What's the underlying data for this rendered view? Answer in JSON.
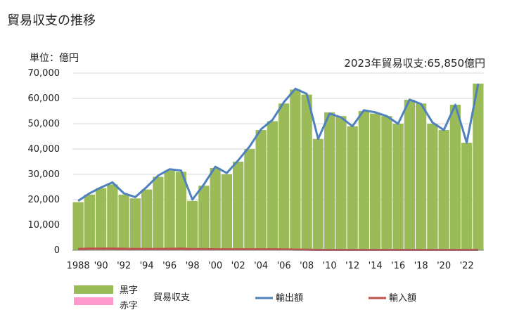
{
  "title": "貿易収支の推移",
  "unit_label": "単位：億円",
  "annotation": "2023年貿易収支:65,850億円",
  "colors": {
    "surplus": "#9bbb59",
    "deficit": "#ff99cc",
    "export": "#4f81bd",
    "import": "#c0504d",
    "grid": "#d9d9d9",
    "axis": "#7f7f7f"
  },
  "chart_data": {
    "type": "bar",
    "ylim": [
      0,
      70000
    ],
    "yticks": [
      "70,000",
      "60,000",
      "50,000",
      "40,000",
      "30,000",
      "20,000",
      "10,000",
      "0"
    ],
    "xtick_labels": [
      "1988",
      "'90",
      "'92",
      "'94",
      "'96",
      "'98",
      "'00",
      "'02",
      "'04",
      "'06",
      "'08",
      "'10",
      "'12",
      "'14",
      "'16",
      "'18",
      "'20",
      "'22"
    ],
    "years": [
      1988,
      1989,
      1990,
      1991,
      1992,
      1993,
      1994,
      1995,
      1996,
      1997,
      1998,
      1999,
      2000,
      2001,
      2002,
      2003,
      2004,
      2005,
      2006,
      2007,
      2008,
      2009,
      2010,
      2011,
      2012,
      2013,
      2014,
      2015,
      2016,
      2017,
      2018,
      2019,
      2020,
      2021,
      2022,
      2023
    ],
    "series": [
      {
        "name": "黒字",
        "kind": "bar",
        "values": [
          19000,
          22000,
          24500,
          26000,
          22000,
          20500,
          24000,
          29000,
          31500,
          31000,
          19500,
          25500,
          32500,
          30000,
          35000,
          40000,
          47500,
          51000,
          58000,
          63500,
          61500,
          44000,
          54500,
          53000,
          49000,
          55000,
          54000,
          53000,
          50000,
          59500,
          58000,
          50000,
          47500,
          57500,
          42500,
          65850
        ]
      },
      {
        "name": "赤字",
        "kind": "bar",
        "values": []
      },
      {
        "name": "輸出額",
        "kind": "line",
        "values": [
          19500,
          22500,
          24800,
          26800,
          22500,
          21000,
          25000,
          29500,
          32000,
          31500,
          20000,
          26000,
          33000,
          30500,
          35500,
          41000,
          47800,
          51500,
          58500,
          63800,
          61800,
          44000,
          54000,
          52500,
          49000,
          55300,
          54500,
          53000,
          50000,
          59500,
          57800,
          50500,
          47500,
          57500,
          42500,
          65800
        ]
      },
      {
        "name": "輸入額",
        "kind": "line",
        "values": [
          500,
          600,
          650,
          600,
          550,
          500,
          500,
          500,
          550,
          600,
          450,
          450,
          400,
          400,
          400,
          400,
          400,
          400,
          300,
          250,
          200,
          150,
          150,
          150,
          150,
          150,
          150,
          150,
          150,
          150,
          150,
          150,
          150,
          150,
          150,
          150
        ]
      }
    ],
    "legend": {
      "surplus": "黒字",
      "deficit": "赤字",
      "balance": "貿易収支",
      "export": "輸出額",
      "import": "輸入額"
    },
    "grid": true,
    "legend_placement": "bottom"
  }
}
